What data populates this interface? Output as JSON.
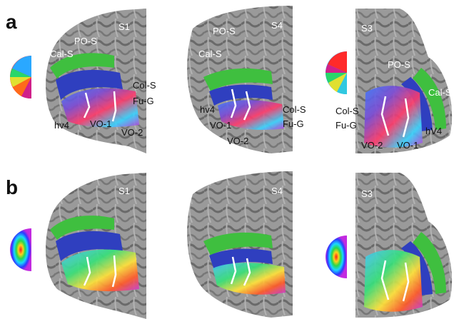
{
  "figure": {
    "rows": [
      {
        "letter": "a",
        "legend": "polar-angle-wedge",
        "brains": [
          {
            "subject": "S1",
            "labels": [
              "PO-S",
              "Cal-S",
              "Col-S",
              "Fu-G",
              "hv4",
              "VO-1",
              "VO-2"
            ]
          },
          {
            "subject": "S4",
            "labels": [
              "PO-S",
              "Cal-S",
              "hv4",
              "Col-S",
              "Fu-G",
              "VO-1",
              "VO-2"
            ]
          },
          {
            "subject": "S3",
            "labels": [
              "PO-S",
              "Cal-S",
              "Col-S",
              "Fu-G",
              "hV4",
              "VO-2",
              "VO-1"
            ]
          }
        ]
      },
      {
        "letter": "b",
        "legend": "eccentricity-rings",
        "brains": [
          {
            "subject": "S1",
            "labels": []
          },
          {
            "subject": "S4",
            "labels": []
          },
          {
            "subject": "S3",
            "labels": []
          }
        ]
      }
    ],
    "colors": {
      "cortex": "#8f8f8f",
      "sulcus": "#5f5f5f",
      "v1_band": "#3fbf3f",
      "v2_band": "#2f3fbf",
      "boundary_line": "#ffffff"
    }
  }
}
